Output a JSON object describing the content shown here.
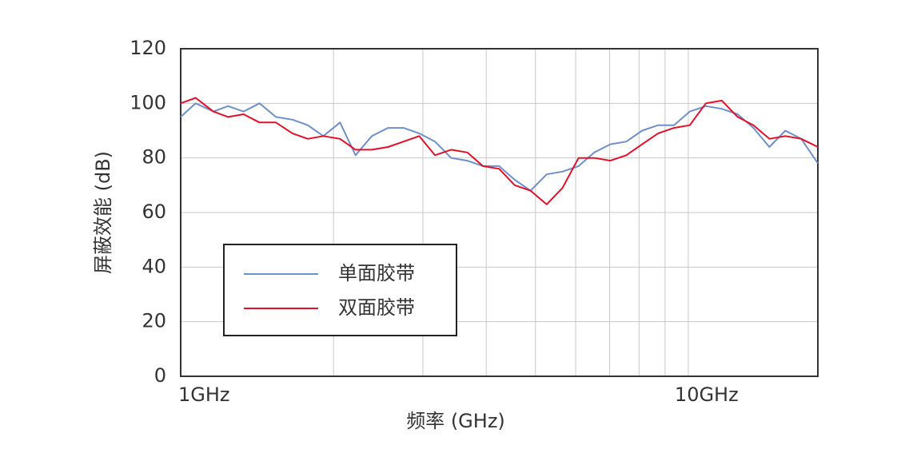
{
  "chart_data": {
    "type": "line",
    "xlabel": "频率 (GHz)",
    "ylabel": "屏蔽效能 (dB)",
    "x": [
      1,
      1.07,
      1.16,
      1.24,
      1.33,
      1.43,
      1.54,
      1.66,
      1.78,
      1.91,
      2.06,
      2.21,
      2.38,
      2.56,
      2.75,
      2.95,
      3.17,
      3.41,
      3.67,
      3.94,
      4.24,
      4.55,
      4.89,
      5.26,
      5.65,
      6.08,
      6.53,
      7.02,
      7.55,
      8.11,
      8.72,
      9.37,
      10.07,
      10.83,
      11.64,
      12.51,
      13.44,
      14.45,
      15.53,
      16.7,
      18
    ],
    "series": [
      {
        "name": "单面胶带",
        "color": "#6f8fc9",
        "values": [
          95,
          100,
          97,
          99,
          97,
          100,
          95,
          94,
          92,
          88,
          93,
          81,
          88,
          91,
          91,
          89,
          86,
          80,
          79,
          77,
          77,
          72,
          68,
          74,
          75,
          77,
          82,
          85,
          86,
          90,
          92,
          92,
          97,
          99,
          98,
          96,
          91,
          84,
          90,
          87,
          78
        ]
      },
      {
        "name": "双面胶带",
        "color": "#e0102a",
        "values": [
          100,
          102,
          97,
          95,
          96,
          93,
          93,
          89,
          87,
          88,
          87,
          83,
          83,
          84,
          86,
          88,
          81,
          83,
          82,
          77,
          76,
          70,
          68,
          63,
          69,
          80,
          80,
          79,
          81,
          85,
          89,
          91,
          92,
          100,
          101,
          95,
          92,
          87,
          88,
          87,
          84
        ]
      }
    ],
    "xlog": true,
    "xlim": [
      1,
      18
    ],
    "xticks": [
      {
        "value": 1,
        "label": "1GHz"
      },
      {
        "value": 10,
        "label": "10GHz"
      }
    ],
    "xgrid": [
      2,
      3,
      4,
      5,
      6,
      7,
      8,
      9
    ],
    "ylim": [
      0,
      120
    ],
    "yticks": [
      0,
      20,
      40,
      60,
      80,
      100,
      120
    ],
    "grid": true,
    "legend": "lower-left"
  }
}
